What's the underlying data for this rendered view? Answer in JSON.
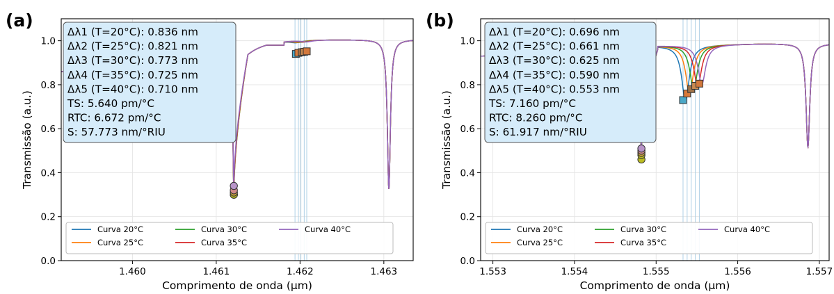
{
  "figure": {
    "panels": [
      "(a)",
      "(b)"
    ]
  },
  "chart_data": [
    {
      "type": "line",
      "panel_label": "(a)",
      "xlabel": "Comprimento de onda (μm)",
      "ylabel": "Transmissão (a.u.)",
      "xlim": [
        1.45915,
        1.46335
      ],
      "ylim": [
        0.0,
        1.1
      ],
      "xticks": [
        1.46,
        1.461,
        1.462,
        1.463
      ],
      "xtick_labels": [
        "1.460",
        "1.461",
        "1.462",
        "1.463"
      ],
      "yticks": [
        0.0,
        0.2,
        0.4,
        0.6,
        0.8,
        1.0
      ],
      "ytick_labels": [
        "0.0",
        "0.2",
        "0.4",
        "0.6",
        "0.8",
        "1.0"
      ],
      "grid": true,
      "legend_position": "bottom",
      "series": [
        {
          "name": "Curva 20°C",
          "color": "#1f77b4",
          "dip1": {
            "x": 1.46121,
            "y": 0.3
          },
          "peak": {
            "x": 1.46195,
            "y": 0.94
          },
          "dip2": {
            "x": 1.46306,
            "y": 0.32
          }
        },
        {
          "name": "Curva 25°C",
          "color": "#ff7f0e",
          "dip1": {
            "x": 1.46121,
            "y": 0.3
          },
          "peak": {
            "x": 1.46198,
            "y": 0.945
          },
          "dip2": {
            "x": 1.46306,
            "y": 0.32
          }
        },
        {
          "name": "Curva 30°C",
          "color": "#2ca02c",
          "dip1": {
            "x": 1.46121,
            "y": 0.31
          },
          "peak": {
            "x": 1.46202,
            "y": 0.948
          },
          "dip2": {
            "x": 1.46306,
            "y": 0.32
          }
        },
        {
          "name": "Curva 35°C",
          "color": "#d62728",
          "dip1": {
            "x": 1.46121,
            "y": 0.32
          },
          "peak": {
            "x": 1.46205,
            "y": 0.95
          },
          "dip2": {
            "x": 1.46306,
            "y": 0.32
          }
        },
        {
          "name": "Curva 40°C",
          "color": "#9467bd",
          "dip1": {
            "x": 1.46121,
            "y": 0.34
          },
          "peak": {
            "x": 1.46208,
            "y": 0.952
          },
          "dip2": {
            "x": 1.46306,
            "y": 0.32
          }
        }
      ],
      "vlines": [
        1.46194,
        1.46198,
        1.46201,
        1.46205,
        1.46208
      ],
      "annotation_lines": [
        "Δλ1 (T=20°C): 0.836 nm",
        "Δλ2 (T=25°C): 0.821 nm",
        "Δλ3 (T=30°C): 0.773 nm",
        "Δλ4 (T=35°C): 0.725 nm",
        "Δλ5 (T=40°C): 0.710 nm",
        "TS: 5.640 pm/°C",
        "RTC: 6.672 pm/°C",
        "S: 57.773 nm/°RIU"
      ]
    },
    {
      "type": "line",
      "panel_label": "(b)",
      "xlabel": "Comprimento de onda (μm)",
      "ylabel": "Transmissão (a.u.)",
      "xlim": [
        1.55285,
        1.55712
      ],
      "ylim": [
        0.0,
        1.1
      ],
      "xticks": [
        1.553,
        1.554,
        1.555,
        1.556,
        1.557
      ],
      "xtick_labels": [
        "1.553",
        "1.554",
        "1.555",
        "1.556",
        "1.557"
      ],
      "yticks": [
        0.0,
        0.2,
        0.4,
        0.6,
        0.8,
        1.0
      ],
      "ytick_labels": [
        "0.0",
        "0.2",
        "0.4",
        "0.6",
        "0.8",
        "1.0"
      ],
      "grid": true,
      "legend_position": "bottom",
      "series": [
        {
          "name": "Curva 20°C",
          "color": "#1f77b4",
          "dip1": {
            "x": 1.55482,
            "y": 0.46
          },
          "peak": {
            "x": 1.55533,
            "y": 0.73
          },
          "dip2": {
            "x": 1.55686,
            "y": 0.52
          }
        },
        {
          "name": "Curva 25°C",
          "color": "#ff7f0e",
          "dip1": {
            "x": 1.55482,
            "y": 0.48
          },
          "peak": {
            "x": 1.55538,
            "y": 0.76
          },
          "dip2": {
            "x": 1.55686,
            "y": 0.52
          }
        },
        {
          "name": "Curva 30°C",
          "color": "#2ca02c",
          "dip1": {
            "x": 1.55482,
            "y": 0.49
          },
          "peak": {
            "x": 1.55543,
            "y": 0.78
          },
          "dip2": {
            "x": 1.55686,
            "y": 0.52
          }
        },
        {
          "name": "Curva 35°C",
          "color": "#d62728",
          "dip1": {
            "x": 1.55482,
            "y": 0.5
          },
          "peak": {
            "x": 1.55548,
            "y": 0.795
          },
          "dip2": {
            "x": 1.55686,
            "y": 0.52
          }
        },
        {
          "name": "Curva 40°C",
          "color": "#9467bd",
          "dip1": {
            "x": 1.55482,
            "y": 0.51
          },
          "peak": {
            "x": 1.55553,
            "y": 0.805
          },
          "dip2": {
            "x": 1.55686,
            "y": 0.52
          }
        }
      ],
      "vlines": [
        1.55533,
        1.55538,
        1.55543,
        1.55548,
        1.55553
      ],
      "annotation_lines": [
        "Δλ1 (T=20°C): 0.696 nm",
        "Δλ2 (T=25°C): 0.661 nm",
        "Δλ3 (T=30°C): 0.625 nm",
        "Δλ4 (T=35°C): 0.590 nm",
        "Δλ5 (T=40°C): 0.553 nm",
        "TS: 7.160 pm/°C",
        "RTC: 8.260 pm/°C",
        "S: 61.917 nm/°RIU"
      ]
    }
  ]
}
